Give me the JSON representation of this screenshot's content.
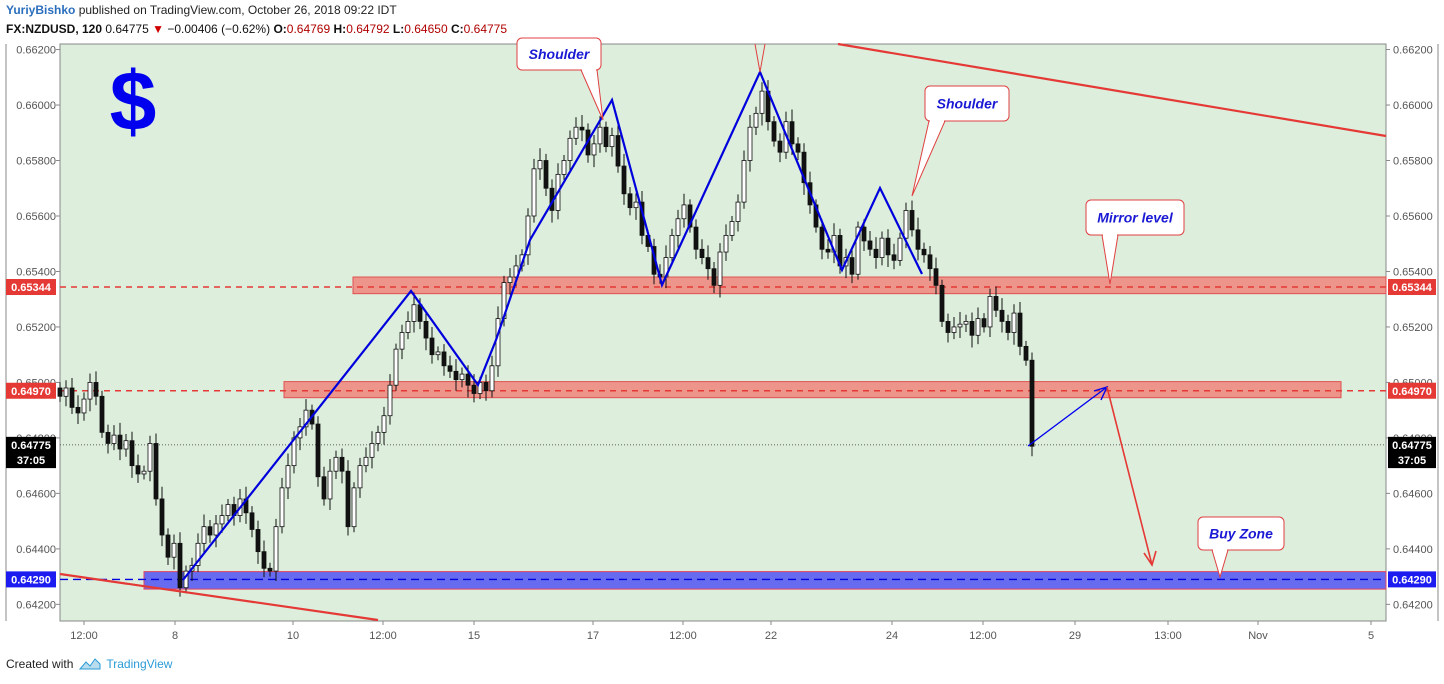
{
  "header": {
    "author": "YuriyBishko",
    "published": "published on TradingView.com, October 26, 2018 09:22 IDT",
    "symbol": "FX:NZDUSD, 120",
    "last": "0.64775",
    "change": "−0.00406 (−0.62%)",
    "o_label": "O:",
    "o": "0.64769",
    "h_label": "H:",
    "h": "0.64792",
    "l_label": "L:",
    "l": "0.64650",
    "c_label": "C:",
    "c": "0.64775"
  },
  "footer": {
    "created_with": "Created with",
    "brand": "TradingView"
  },
  "colors": {
    "bg": "#ddeedd",
    "support_red": "#e53935",
    "zone_red": "#f0857d",
    "zone_blue": "#5a5cf2",
    "pattern_blue": "#0000dd",
    "note_red": "#e04040",
    "note_text": "#1a1ad4"
  },
  "chart_data": {
    "type": "candlestick",
    "symbol": "FX:NZDUSD",
    "interval": "120",
    "ylim": [
      0.6414,
      0.6622
    ],
    "y_ticks": [
      "0.66200",
      "0.66000",
      "0.65800",
      "0.65600",
      "0.65400",
      "0.65200",
      "0.65000",
      "0.64800",
      "0.64600",
      "0.64400",
      "0.64200"
    ],
    "x_ticks": [
      "12:00",
      "8",
      "10",
      "12:00",
      "15",
      "17",
      "12:00",
      "22",
      "24",
      "12:00",
      "29",
      "13:00",
      "Nov",
      "5"
    ],
    "price_tags": [
      {
        "label": "0.65344",
        "value": 0.65344,
        "kind": "level"
      },
      {
        "label": "0.64970",
        "value": 0.6497,
        "kind": "level"
      },
      {
        "label": "0.64775",
        "value": 0.64775,
        "kind": "current"
      },
      {
        "label": "37:05",
        "value": 0.6472,
        "kind": "timer"
      },
      {
        "label": "0.64290",
        "value": 0.6429,
        "kind": "blue"
      }
    ],
    "zones": [
      {
        "name": "resistance-zone-1",
        "low": 0.6532,
        "high": 0.6538,
        "color": "red"
      },
      {
        "name": "resistance-zone-2",
        "low": 0.64945,
        "high": 0.65003,
        "color": "red"
      },
      {
        "name": "buy-zone",
        "low": 0.64255,
        "high": 0.64318,
        "color": "blue"
      }
    ],
    "levels": [
      0.65344,
      0.6497,
      0.6429,
      0.64775
    ],
    "annotations": [
      {
        "text": "Shoulder",
        "x": 558,
        "y": 54,
        "tip_x": 603,
        "tip_y": 120
      },
      {
        "text": "Shoulder",
        "x": 967,
        "y": 102,
        "tip_x": 912,
        "tip_y": 196
      },
      {
        "text": "Mirror level",
        "x": 1136,
        "y": 217,
        "tip_x": 1110,
        "tip_y": 284
      },
      {
        "text": "Buy Zone",
        "x": 1241,
        "y": 533,
        "tip_x": 1220,
        "tip_y": 577
      }
    ],
    "symbol_label": "$",
    "pattern_path": [
      [
        183,
        580
      ],
      [
        411,
        291
      ],
      [
        478,
        385
      ],
      [
        496,
        340
      ],
      [
        530,
        240
      ],
      [
        612,
        100
      ],
      [
        662,
        285
      ],
      [
        760,
        72
      ],
      [
        842,
        270
      ],
      [
        880,
        188
      ],
      [
        922,
        274
      ]
    ],
    "trend_lines": [
      {
        "from": [
          838,
          44
        ],
        "to": [
          1386,
          136
        ]
      },
      {
        "from": [
          60,
          574
        ],
        "to": [
          378,
          620
        ]
      }
    ],
    "projection": {
      "up": [
        [
          1028,
          446
        ],
        [
          1107,
          387
        ]
      ],
      "down": [
        [
          1107,
          387
        ],
        [
          1152,
          565
        ]
      ]
    },
    "candles_seed": [
      [
        60,
        0.6495
      ],
      [
        66,
        0.6498
      ],
      [
        72,
        0.6491
      ],
      [
        78,
        0.6489
      ],
      [
        84,
        0.6494
      ],
      [
        90,
        0.65
      ],
      [
        96,
        0.6495
      ],
      [
        102,
        0.6482
      ],
      [
        108,
        0.6478
      ],
      [
        114,
        0.6481
      ],
      [
        120,
        0.6476
      ],
      [
        126,
        0.6479
      ],
      [
        132,
        0.647
      ],
      [
        138,
        0.6467
      ],
      [
        144,
        0.6468
      ],
      [
        150,
        0.6478
      ],
      [
        156,
        0.6458
      ],
      [
        162,
        0.6445
      ],
      [
        168,
        0.6437
      ],
      [
        174,
        0.6442
      ],
      [
        180,
        0.6426
      ],
      [
        186,
        0.6432
      ],
      [
        192,
        0.6434
      ],
      [
        198,
        0.6442
      ],
      [
        204,
        0.6448
      ],
      [
        210,
        0.6445
      ],
      [
        216,
        0.6449
      ],
      [
        222,
        0.6452
      ],
      [
        228,
        0.6456
      ],
      [
        234,
        0.6452
      ],
      [
        240,
        0.6458
      ],
      [
        246,
        0.6453
      ],
      [
        252,
        0.6447
      ],
      [
        258,
        0.6439
      ],
      [
        264,
        0.6433
      ],
      [
        270,
        0.6432
      ],
      [
        276,
        0.6448
      ],
      [
        282,
        0.6462
      ],
      [
        288,
        0.647
      ],
      [
        294,
        0.648
      ],
      [
        300,
        0.6484
      ],
      [
        306,
        0.649
      ],
      [
        312,
        0.6485
      ],
      [
        318,
        0.6466
      ],
      [
        324,
        0.6458
      ],
      [
        330,
        0.6468
      ],
      [
        336,
        0.6473
      ],
      [
        342,
        0.6468
      ],
      [
        348,
        0.6448
      ],
      [
        354,
        0.6462
      ],
      [
        360,
        0.647
      ],
      [
        366,
        0.6473
      ],
      [
        372,
        0.6478
      ],
      [
        378,
        0.6482
      ],
      [
        384,
        0.6488
      ],
      [
        390,
        0.6499
      ],
      [
        396,
        0.6512
      ],
      [
        402,
        0.6518
      ],
      [
        408,
        0.6522
      ],
      [
        414,
        0.6528
      ],
      [
        420,
        0.6522
      ],
      [
        426,
        0.6516
      ],
      [
        432,
        0.651
      ],
      [
        438,
        0.6511
      ],
      [
        444,
        0.6506
      ],
      [
        450,
        0.6504
      ],
      [
        456,
        0.6501
      ],
      [
        462,
        0.6503
      ],
      [
        468,
        0.6499
      ],
      [
        474,
        0.6496
      ],
      [
        480,
        0.65
      ],
      [
        486,
        0.6497
      ],
      [
        492,
        0.6506
      ],
      [
        498,
        0.6523
      ],
      [
        504,
        0.6536
      ],
      [
        510,
        0.6538
      ],
      [
        516,
        0.6542
      ],
      [
        522,
        0.6546
      ],
      [
        528,
        0.656
      ],
      [
        534,
        0.6577
      ],
      [
        540,
        0.658
      ],
      [
        546,
        0.657
      ],
      [
        552,
        0.6562
      ],
      [
        558,
        0.6575
      ],
      [
        564,
        0.658
      ],
      [
        570,
        0.6588
      ],
      [
        576,
        0.6592
      ],
      [
        582,
        0.6591
      ],
      [
        588,
        0.6582
      ],
      [
        594,
        0.6586
      ],
      [
        600,
        0.6592
      ],
      [
        606,
        0.6585
      ],
      [
        612,
        0.6589
      ],
      [
        618,
        0.6578
      ],
      [
        624,
        0.6568
      ],
      [
        630,
        0.6563
      ],
      [
        636,
        0.6565
      ],
      [
        642,
        0.6553
      ],
      [
        648,
        0.6549
      ],
      [
        654,
        0.6539
      ],
      [
        660,
        0.6538
      ],
      [
        666,
        0.6545
      ],
      [
        672,
        0.6553
      ],
      [
        678,
        0.6559
      ],
      [
        684,
        0.6564
      ],
      [
        690,
        0.6556
      ],
      [
        696,
        0.6548
      ],
      [
        702,
        0.6545
      ],
      [
        708,
        0.6541
      ],
      [
        714,
        0.6535
      ],
      [
        720,
        0.6547
      ],
      [
        726,
        0.6553
      ],
      [
        732,
        0.6558
      ],
      [
        738,
        0.6565
      ],
      [
        744,
        0.658
      ],
      [
        750,
        0.6592
      ],
      [
        756,
        0.6597
      ],
      [
        762,
        0.6605
      ],
      [
        768,
        0.6594
      ],
      [
        774,
        0.6587
      ],
      [
        780,
        0.6583
      ],
      [
        786,
        0.6594
      ],
      [
        792,
        0.6586
      ],
      [
        798,
        0.6583
      ],
      [
        804,
        0.6572
      ],
      [
        810,
        0.6564
      ],
      [
        816,
        0.6556
      ],
      [
        822,
        0.6548
      ],
      [
        828,
        0.6547
      ],
      [
        834,
        0.6553
      ],
      [
        840,
        0.6542
      ],
      [
        846,
        0.6545
      ],
      [
        852,
        0.6539
      ],
      [
        858,
        0.6556
      ],
      [
        864,
        0.6551
      ],
      [
        870,
        0.6548
      ],
      [
        876,
        0.6545
      ],
      [
        882,
        0.6552
      ],
      [
        888,
        0.6546
      ],
      [
        894,
        0.6544
      ],
      [
        900,
        0.6552
      ],
      [
        906,
        0.6562
      ],
      [
        912,
        0.6555
      ],
      [
        918,
        0.6548
      ],
      [
        924,
        0.6546
      ],
      [
        930,
        0.6541
      ],
      [
        936,
        0.6535
      ],
      [
        942,
        0.6522
      ],
      [
        948,
        0.6518
      ],
      [
        954,
        0.652
      ],
      [
        960,
        0.6521
      ],
      [
        966,
        0.6522
      ],
      [
        972,
        0.6517
      ],
      [
        978,
        0.6523
      ],
      [
        984,
        0.652
      ],
      [
        990,
        0.6531
      ],
      [
        996,
        0.6526
      ],
      [
        1002,
        0.6522
      ],
      [
        1008,
        0.6518
      ],
      [
        1014,
        0.6525
      ],
      [
        1020,
        0.6513
      ],
      [
        1026,
        0.6508
      ],
      [
        1032,
        0.6477
      ]
    ]
  }
}
